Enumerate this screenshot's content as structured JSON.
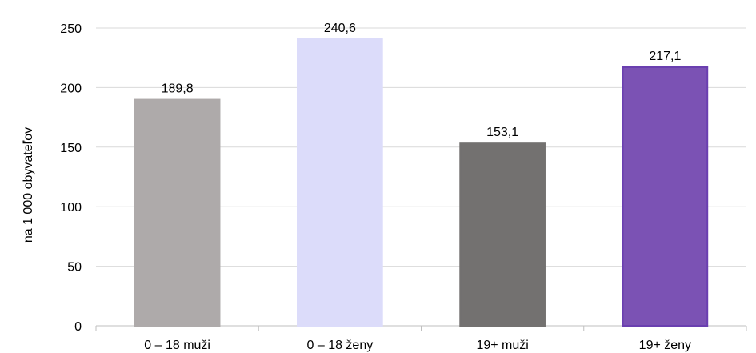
{
  "chart_data": {
    "type": "bar",
    "title": "",
    "xlabel": "",
    "ylabel": "na 1 000 obyvateľov",
    "ylim": [
      0,
      250
    ],
    "yticks": [
      0,
      50,
      100,
      150,
      200,
      250
    ],
    "ytick_labels": [
      "0",
      "50",
      "100",
      "150",
      "200",
      "250"
    ],
    "grid": true,
    "legend": "none",
    "categories": [
      "0 – 18 muži",
      "0 – 18 ženy",
      "19+ muži",
      "19+ ženy"
    ],
    "values": [
      189.8,
      240.6,
      153.1,
      217.1
    ],
    "value_labels": [
      "189,8",
      "240,6",
      "153,1",
      "217,1"
    ],
    "colors": [
      "#aeaaaa",
      "#dcdcfa",
      "#737170",
      "#7b52b4"
    ],
    "border_colors": [
      "#aeaaaa",
      "#dcdcfa",
      "#737170",
      "#6a3fb0"
    ],
    "grid_color": "#d9d9d9",
    "axis_color": "#bfbfbf"
  }
}
